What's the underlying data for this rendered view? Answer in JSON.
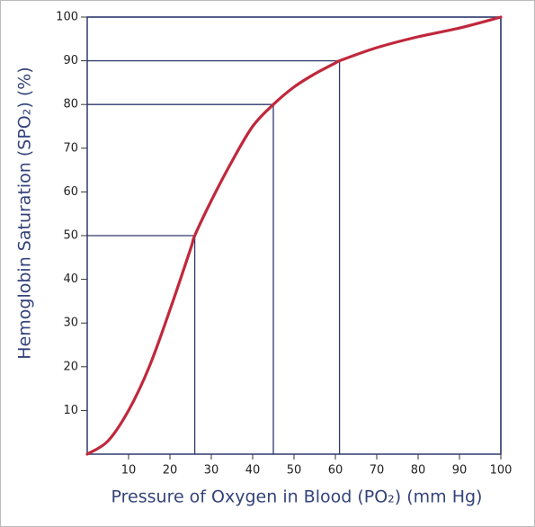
{
  "chart_data": {
    "type": "line",
    "x_label": "Pressure of Oxygen in Blood (PO₂) (mm Hg)",
    "y_label": "Hemoglobin Saturation (SPO₂) (%)",
    "x": [
      0,
      5,
      10,
      15,
      20,
      25,
      26,
      30,
      35,
      40,
      45,
      50,
      55,
      60,
      61,
      70,
      80,
      90,
      100
    ],
    "series": [
      {
        "color": "#c0283c",
        "values": [
          0,
          3,
          10,
          20,
          33,
          47,
          50,
          58,
          67,
          75,
          80,
          84,
          87,
          89.5,
          90,
          93,
          95.5,
          97.5,
          100
        ]
      }
    ],
    "guides": {
      "color": "#2e3a6e",
      "x": [
        26,
        45,
        61,
        100
      ],
      "y": [
        50,
        80,
        90,
        100
      ]
    },
    "xlim": [
      0,
      100
    ],
    "ylim": [
      0,
      100
    ],
    "xticks": [
      10,
      20,
      30,
      40,
      50,
      60,
      70,
      80,
      90,
      100
    ],
    "yticks": [
      10,
      20,
      30,
      40,
      50,
      60,
      70,
      80,
      90,
      100
    ]
  }
}
